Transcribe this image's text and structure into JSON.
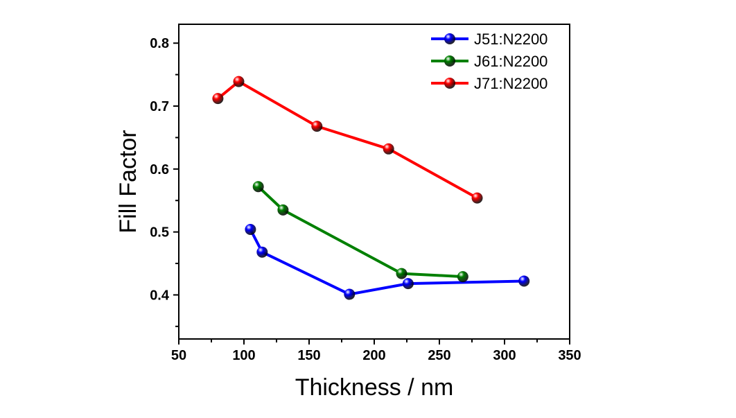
{
  "chart_data": {
    "type": "line",
    "title": "",
    "xlabel": "Thickness / nm",
    "ylabel": "Fill Factor",
    "xlim": [
      50,
      350
    ],
    "ylim": [
      0.33,
      0.83
    ],
    "xticks": [
      50,
      100,
      150,
      200,
      250,
      300,
      350
    ],
    "xtick_labels": [
      "50",
      "100",
      "150",
      "200",
      "250",
      "300",
      "350"
    ],
    "yticks": [
      0.4,
      0.5,
      0.6,
      0.7,
      0.8
    ],
    "ytick_labels": [
      "0.4",
      "0.5",
      "0.6",
      "0.7",
      "0.8"
    ],
    "grid": false,
    "legend_position": "top-right",
    "series": [
      {
        "name": "J51:N2200",
        "color": "#0000ff",
        "x": [
          105,
          114,
          181,
          226,
          315
        ],
        "y": [
          0.504,
          0.468,
          0.401,
          0.418,
          0.422
        ]
      },
      {
        "name": "J61:N2200",
        "color": "#008000",
        "x": [
          111,
          130,
          221,
          268
        ],
        "y": [
          0.572,
          0.535,
          0.434,
          0.429
        ]
      },
      {
        "name": "J71:N2200",
        "color": "#ff0000",
        "x": [
          80,
          96,
          156,
          211,
          279
        ],
        "y": [
          0.712,
          0.739,
          0.668,
          0.632,
          0.554
        ]
      }
    ]
  }
}
